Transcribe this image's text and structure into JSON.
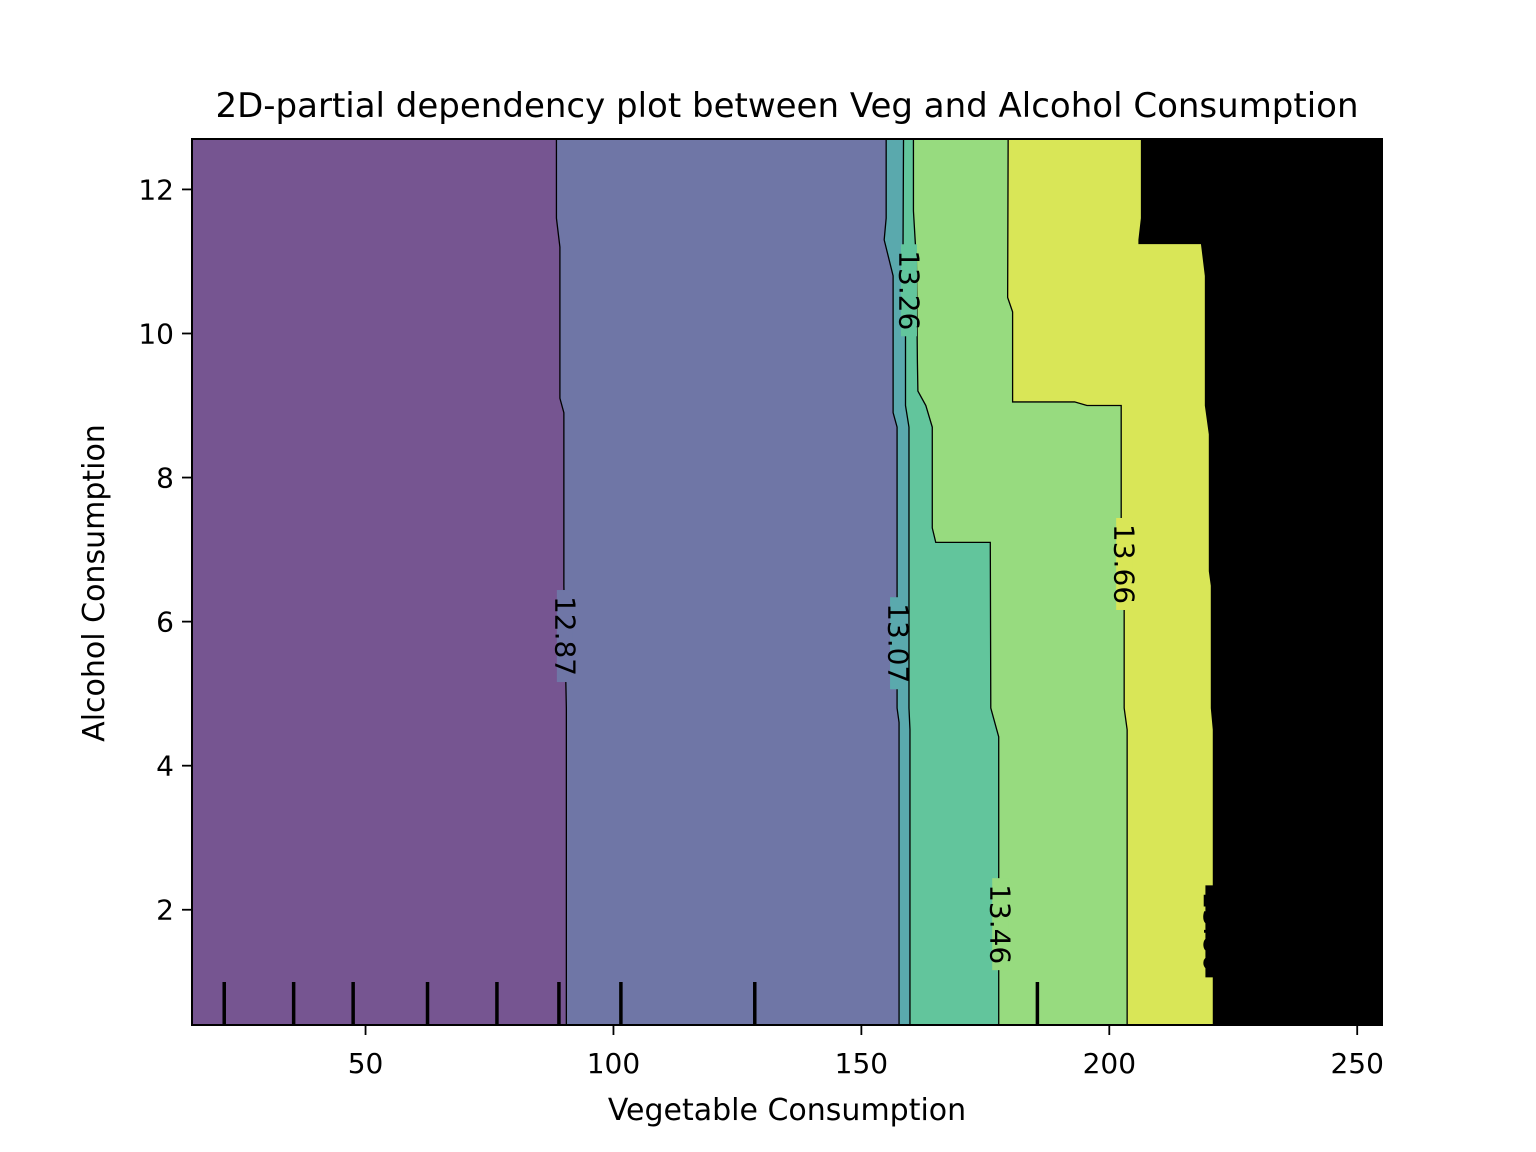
{
  "chart_data": {
    "type": "contour",
    "title": "2D-partial dependency plot between Veg and Alcohol Consumption",
    "xlabel": "Vegetable Consumption",
    "ylabel": "Alcohol Consumption",
    "xlim": [
      15,
      255
    ],
    "ylim": [
      0.4,
      12.7
    ],
    "x_ticks": [
      50,
      100,
      150,
      200,
      250
    ],
    "y_ticks": [
      2,
      4,
      6,
      8,
      10,
      12
    ],
    "region_colors": [
      "#765591",
      "#6f76a6",
      "#5aa9ad",
      "#62c59c",
      "#97db7f",
      "#d9e657"
    ],
    "levels": [
      {
        "label": "12.87",
        "label_pos": [
          90.2,
          5.8
        ],
        "line": [
          [
            88.5,
            12.7
          ],
          [
            88.5,
            11.6
          ],
          [
            89.2,
            11.2
          ],
          [
            89.2,
            9.1
          ],
          [
            90.0,
            8.9
          ],
          [
            90.0,
            6.5
          ],
          [
            90.5,
            4.8
          ],
          [
            90.5,
            0.4
          ]
        ]
      },
      {
        "label": "13.07",
        "label_pos": [
          157.4,
          5.7
        ],
        "line": [
          [
            155.0,
            12.7
          ],
          [
            155.0,
            11.6
          ],
          [
            154.6,
            11.3
          ],
          [
            156.4,
            10.8
          ],
          [
            156.4,
            8.9
          ],
          [
            157.2,
            8.7
          ],
          [
            157.2,
            4.8
          ],
          [
            157.6,
            4.6
          ],
          [
            157.6,
            0.4
          ]
        ]
      },
      {
        "label": "13.26",
        "label_pos": [
          159.6,
          10.6
        ],
        "line": [
          [
            158.5,
            12.7
          ],
          [
            158.4,
            11.2
          ],
          [
            158.9,
            10.7
          ],
          [
            158.9,
            9.0
          ],
          [
            159.6,
            8.7
          ],
          [
            159.6,
            4.8
          ],
          [
            159.8,
            4.5
          ],
          [
            159.8,
            0.4
          ]
        ]
      },
      {
        "label": "13.46",
        "label_pos": [
          178.0,
          1.8
        ],
        "line": [
          [
            160.5,
            12.7
          ],
          [
            160.5,
            11.7
          ],
          [
            161.1,
            11.0
          ],
          [
            161.3,
            9.6
          ],
          [
            161.4,
            9.2
          ],
          [
            163.0,
            9.0
          ],
          [
            164.3,
            8.7
          ],
          [
            164.3,
            7.3
          ],
          [
            165.0,
            7.1
          ],
          [
            176.0,
            7.1
          ],
          [
            176.1,
            4.8
          ],
          [
            177.3,
            4.5
          ],
          [
            177.7,
            4.4
          ],
          [
            177.7,
            0.4
          ]
        ]
      },
      {
        "label": "13.66",
        "label_pos": [
          203.0,
          6.8
        ],
        "line": [
          [
            179.6,
            12.7
          ],
          [
            179.5,
            10.5
          ],
          [
            180.5,
            10.3
          ],
          [
            180.5,
            9.05
          ],
          [
            193.0,
            9.05
          ],
          [
            195.5,
            9.0
          ],
          [
            202.4,
            9.0
          ],
          [
            202.4,
            7.0
          ],
          [
            203.0,
            6.7
          ],
          [
            203.0,
            4.8
          ],
          [
            203.6,
            4.5
          ],
          [
            203.6,
            0.4
          ]
        ]
      },
      {
        "label": "13.86",
        "label_pos": [
          221.0,
          1.7
        ],
        "line": [
          [
            206.5,
            12.7
          ],
          [
            206.5,
            11.6
          ],
          [
            206.0,
            11.3
          ],
          [
            206.0,
            11.25
          ],
          [
            218.6,
            11.25
          ],
          [
            219.4,
            10.8
          ],
          [
            219.4,
            9.0
          ],
          [
            220.2,
            8.6
          ],
          [
            220.2,
            6.7
          ],
          [
            220.6,
            6.5
          ],
          [
            220.6,
            4.8
          ],
          [
            221.0,
            4.5
          ],
          [
            221.0,
            0.4
          ]
        ]
      }
    ],
    "rug_x": [
      21.5,
      35.5,
      47.5,
      62.5,
      76.5,
      89.0,
      101.5,
      128.5,
      185.5
    ]
  }
}
